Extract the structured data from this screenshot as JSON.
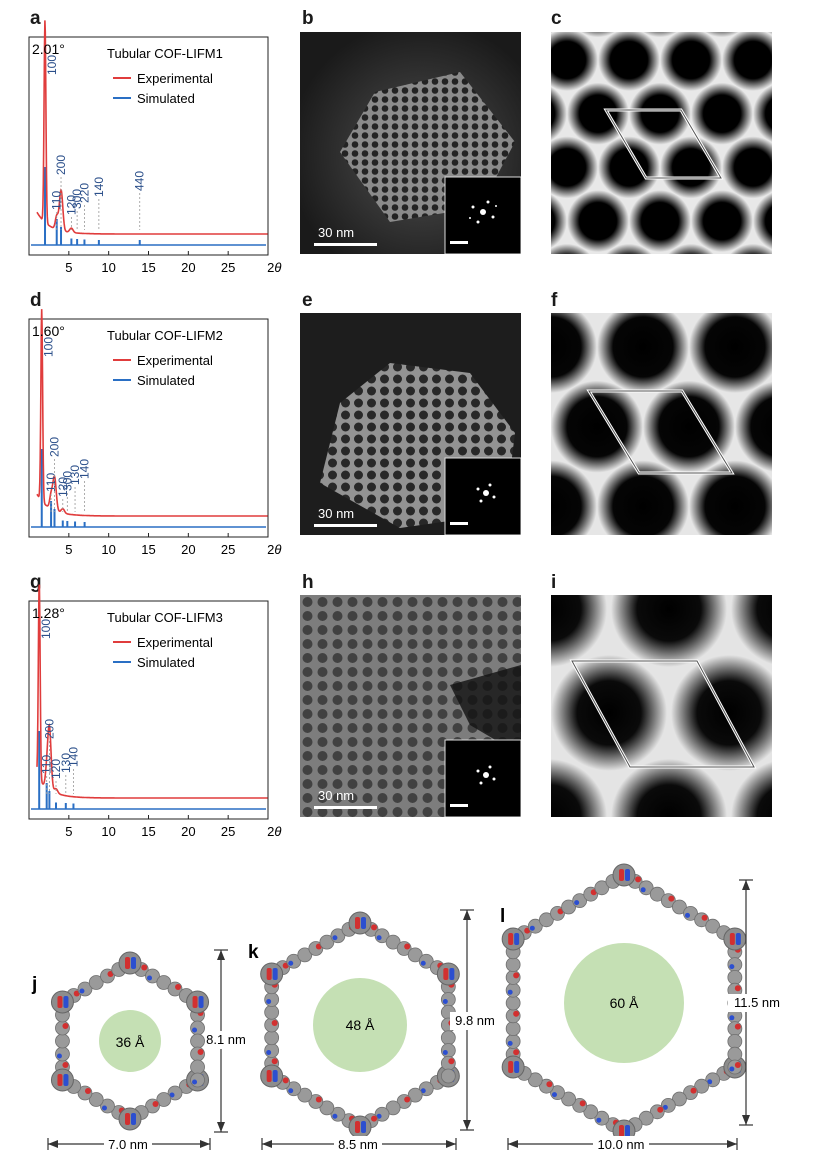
{
  "xrd": [
    {
      "label": "a",
      "peak": "2.01°",
      "title": "Tubular COF-LIFM1",
      "exp_label": "Experimental",
      "sim_label": "Simulated",
      "peaks": [
        {
          "text": "100",
          "x": 2.01
        },
        {
          "text": "110",
          "x": 3.48
        },
        {
          "text": "200",
          "x": 4.02
        },
        {
          "text": "120",
          "x": 5.32
        },
        {
          "text": "300",
          "x": 6.04
        },
        {
          "text": "220",
          "x": 6.96
        },
        {
          "text": "140",
          "x": 8.77
        },
        {
          "text": "440",
          "x": 13.9
        }
      ],
      "exp_heights": {
        "main": 0.93,
        "second": 0.34
      }
    },
    {
      "label": "d",
      "peak": "1.60°",
      "title": "Tubular COF-LIFM2",
      "exp_label": "Experimental",
      "sim_label": "Simulated",
      "peaks": [
        {
          "text": "100",
          "x": 1.6
        },
        {
          "text": "110",
          "x": 2.77
        },
        {
          "text": "200",
          "x": 3.2
        },
        {
          "text": "120",
          "x": 4.24
        },
        {
          "text": "300",
          "x": 4.81
        },
        {
          "text": "130",
          "x": 5.78
        },
        {
          "text": "140",
          "x": 6.98
        }
      ],
      "exp_heights": {
        "main": 0.88,
        "second": 0.28
      }
    },
    {
      "label": "g",
      "peak": "1.28°",
      "title": "Tubular COF-LIFM3",
      "exp_label": "Experimental",
      "sim_label": "Simulated",
      "peaks": [
        {
          "text": "100",
          "x": 1.28
        },
        {
          "text": "110",
          "x": 2.22
        },
        {
          "text": "200",
          "x": 2.56
        },
        {
          "text": "120",
          "x": 3.39
        },
        {
          "text": "130",
          "x": 4.62
        },
        {
          "text": "140",
          "x": 5.58
        }
      ],
      "exp_heights": {
        "main": 0.91,
        "second": 0.52
      }
    }
  ],
  "xaxis": {
    "ticks": [
      "5",
      "10",
      "15",
      "20",
      "25"
    ],
    "label_prefix": "2",
    "label_theta": "θ",
    "label_suffix": " (°)"
  },
  "tem": [
    {
      "label": "b",
      "scale": "30 nm"
    },
    {
      "label": "e",
      "scale": "30 nm"
    },
    {
      "label": "h",
      "scale": "30 nm"
    }
  ],
  "sim_labels": [
    "c",
    "f",
    "i"
  ],
  "structures": [
    {
      "label": "j",
      "pore": "36 Å",
      "height": "8.1 nm",
      "width": "7.0 nm"
    },
    {
      "label": "k",
      "pore": "48 Å",
      "height": "9.8 nm",
      "width": "8.5 nm"
    },
    {
      "label": "l",
      "pore": "60 Å",
      "height": "11.5 nm",
      "width": "10.0 nm"
    }
  ],
  "colors": {
    "experimental": "#e03c3c",
    "simulated": "#2a6fc4",
    "pore": "#c5e0b4",
    "atom_c": "#9a9a9a",
    "atom_o": "#d23030",
    "atom_n": "#2c4fd0"
  }
}
